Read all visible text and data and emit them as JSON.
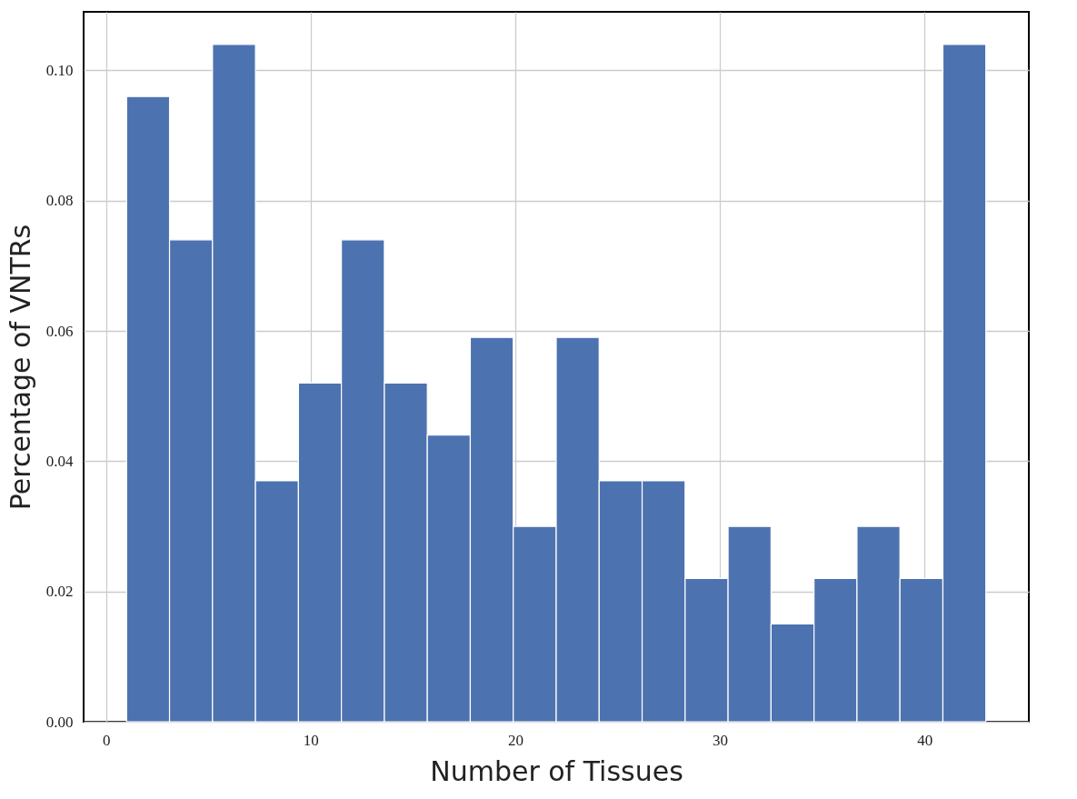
{
  "chart_data": {
    "type": "histogram",
    "xlabel": "Number of Tissues",
    "ylabel": "Percentage of VNTRs",
    "bins": [
      1,
      3.1,
      5.2,
      7.3,
      9.4,
      11.5,
      13.6,
      15.7,
      17.8,
      19.9,
      22,
      24.1,
      26.2,
      28.3,
      30.4,
      32.5,
      34.6,
      36.7,
      38.8,
      40.9,
      43
    ],
    "values": [
      0.096,
      0.074,
      0.104,
      0.037,
      0.052,
      0.074,
      0.052,
      0.044,
      0.059,
      0.03,
      0.059,
      0.037,
      0.037,
      0.022,
      0.03,
      0.015,
      0.022,
      0.03,
      0.022,
      0.104
    ],
    "color": "#4c72b0",
    "xlim": [
      -1.1,
      45.1
    ],
    "ylim": [
      0,
      0.109
    ],
    "xticks": [
      0,
      10,
      20,
      30,
      40
    ],
    "yticks": [
      {
        "value": 0,
        "label": "0.00"
      },
      {
        "value": 0.02,
        "label": "0.02"
      },
      {
        "value": 0.04,
        "label": "0.04"
      },
      {
        "value": 0.06,
        "label": "0.06"
      },
      {
        "value": 0.08,
        "label": "0.08"
      },
      {
        "value": 0.1,
        "label": "0.10"
      }
    ],
    "grid": true
  }
}
